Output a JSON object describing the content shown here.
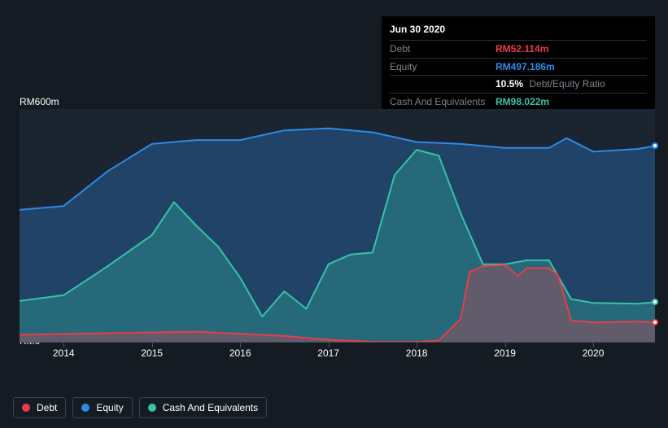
{
  "tooltip": {
    "date": "Jun 30 2020",
    "rows": [
      {
        "label": "Debt",
        "value": "RM52.114m",
        "color": "#eb3d47"
      },
      {
        "label": "Equity",
        "value": "RM497.186m",
        "color": "#2e8ae6"
      },
      {
        "label": "",
        "value": "10.5%",
        "sub": "Debt/Equity Ratio",
        "color": "#ffffff"
      },
      {
        "label": "Cash And Equivalents",
        "value": "RM98.022m",
        "color": "#35c4a8"
      }
    ]
  },
  "chart": {
    "type": "area",
    "background_color": "#1b2531",
    "page_background": "#151b23",
    "grid_color": "#4a515a",
    "y_axis": {
      "min": 0,
      "max": 600,
      "unit": "RM",
      "suffix": "m",
      "labels": [
        {
          "text": "RM600m",
          "v": 600
        },
        {
          "text": "RM0",
          "v": 0
        }
      ]
    },
    "x_axis": {
      "min": 2013.5,
      "max": 2020.7,
      "ticks": [
        2014,
        2015,
        2016,
        2017,
        2018,
        2019,
        2020
      ]
    },
    "series": [
      {
        "name": "Equity",
        "color": "#2e8ae6",
        "fill": "rgba(46,138,230,0.30)",
        "line_width": 2,
        "points": [
          [
            2013.5,
            340
          ],
          [
            2014.0,
            350
          ],
          [
            2014.5,
            440
          ],
          [
            2015.0,
            510
          ],
          [
            2015.5,
            520
          ],
          [
            2016.0,
            520
          ],
          [
            2016.5,
            545
          ],
          [
            2017.0,
            550
          ],
          [
            2017.5,
            540
          ],
          [
            2018.0,
            515
          ],
          [
            2018.5,
            510
          ],
          [
            2019.0,
            500
          ],
          [
            2019.5,
            500
          ],
          [
            2019.7,
            525
          ],
          [
            2020.0,
            490
          ],
          [
            2020.5,
            497
          ],
          [
            2020.7,
            505
          ]
        ],
        "marker_at": [
          2020.7,
          505
        ]
      },
      {
        "name": "Cash And Equivalents",
        "color": "#35c4a8",
        "fill": "rgba(53,196,168,0.30)",
        "line_width": 2,
        "points": [
          [
            2013.5,
            105
          ],
          [
            2014.0,
            120
          ],
          [
            2014.5,
            195
          ],
          [
            2015.0,
            275
          ],
          [
            2015.25,
            360
          ],
          [
            2015.5,
            300
          ],
          [
            2015.75,
            245
          ],
          [
            2016.0,
            165
          ],
          [
            2016.25,
            65
          ],
          [
            2016.5,
            130
          ],
          [
            2016.75,
            85
          ],
          [
            2017.0,
            200
          ],
          [
            2017.25,
            225
          ],
          [
            2017.5,
            230
          ],
          [
            2017.75,
            430
          ],
          [
            2018.0,
            495
          ],
          [
            2018.25,
            480
          ],
          [
            2018.5,
            330
          ],
          [
            2018.75,
            200
          ],
          [
            2019.0,
            200
          ],
          [
            2019.25,
            210
          ],
          [
            2019.5,
            210
          ],
          [
            2019.75,
            110
          ],
          [
            2020.0,
            100
          ],
          [
            2020.5,
            98
          ],
          [
            2020.7,
            102
          ]
        ],
        "marker_at": [
          2020.7,
          102
        ]
      },
      {
        "name": "Debt",
        "color": "#eb3d47",
        "fill": "rgba(235,61,71,0.30)",
        "line_width": 2,
        "points": [
          [
            2013.5,
            18
          ],
          [
            2014.5,
            22
          ],
          [
            2015.5,
            26
          ],
          [
            2016.5,
            15
          ],
          [
            2017.0,
            5
          ],
          [
            2017.5,
            0
          ],
          [
            2018.0,
            0
          ],
          [
            2018.25,
            3
          ],
          [
            2018.5,
            60
          ],
          [
            2018.6,
            180
          ],
          [
            2018.75,
            195
          ],
          [
            2019.0,
            198
          ],
          [
            2019.15,
            170
          ],
          [
            2019.25,
            190
          ],
          [
            2019.5,
            190
          ],
          [
            2019.6,
            172
          ],
          [
            2019.75,
            55
          ],
          [
            2020.0,
            50
          ],
          [
            2020.5,
            52
          ],
          [
            2020.7,
            50
          ]
        ],
        "marker_at": [
          2020.7,
          50
        ]
      }
    ]
  },
  "legend": [
    {
      "label": "Debt",
      "color": "#eb3d47"
    },
    {
      "label": "Equity",
      "color": "#2e8ae6"
    },
    {
      "label": "Cash And Equivalents",
      "color": "#35c4a8"
    }
  ]
}
